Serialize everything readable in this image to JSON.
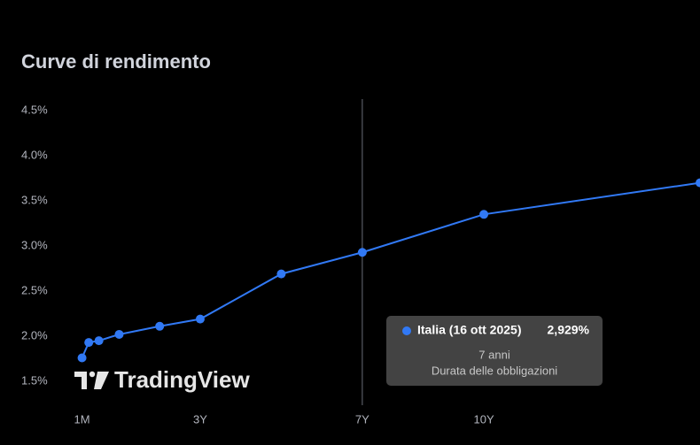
{
  "chart_data": {
    "type": "line",
    "title": "Curve di rendimento",
    "watermark": "TradingView",
    "x": [
      1,
      3,
      6,
      12,
      24,
      36,
      60,
      84,
      120,
      184
    ],
    "series": [
      {
        "name": "Italia (16 ott 2025)",
        "color": "#3179f5",
        "values": [
          1.76,
          1.93,
          1.95,
          2.02,
          2.11,
          2.19,
          2.69,
          2.929,
          3.35,
          3.7
        ]
      }
    ],
    "xlim": [
      0,
      184
    ],
    "xticks": [
      {
        "value": 1,
        "label": "1M"
      },
      {
        "value": 36,
        "label": "3Y"
      },
      {
        "value": 84,
        "label": "7Y"
      },
      {
        "value": 120,
        "label": "10Y"
      }
    ],
    "ylim": [
      1.2,
      4.6
    ],
    "yticks": [
      {
        "value": 1.5,
        "label": "1.5%"
      },
      {
        "value": 2,
        "label": "2.0%"
      },
      {
        "value": 2.5,
        "label": "2.5%"
      },
      {
        "value": 3,
        "label": "3.0%"
      },
      {
        "value": 3.5,
        "label": "3.5%"
      },
      {
        "value": 4,
        "label": "4.0%"
      },
      {
        "value": 4.5,
        "label": "4.5%"
      }
    ],
    "crosshair_x": 84,
    "tooltip": {
      "name": "Italia (16 ott 2025)",
      "value": "2,929%",
      "x_label": "7 anni",
      "caption": "Durata delle obbligazioni"
    }
  }
}
